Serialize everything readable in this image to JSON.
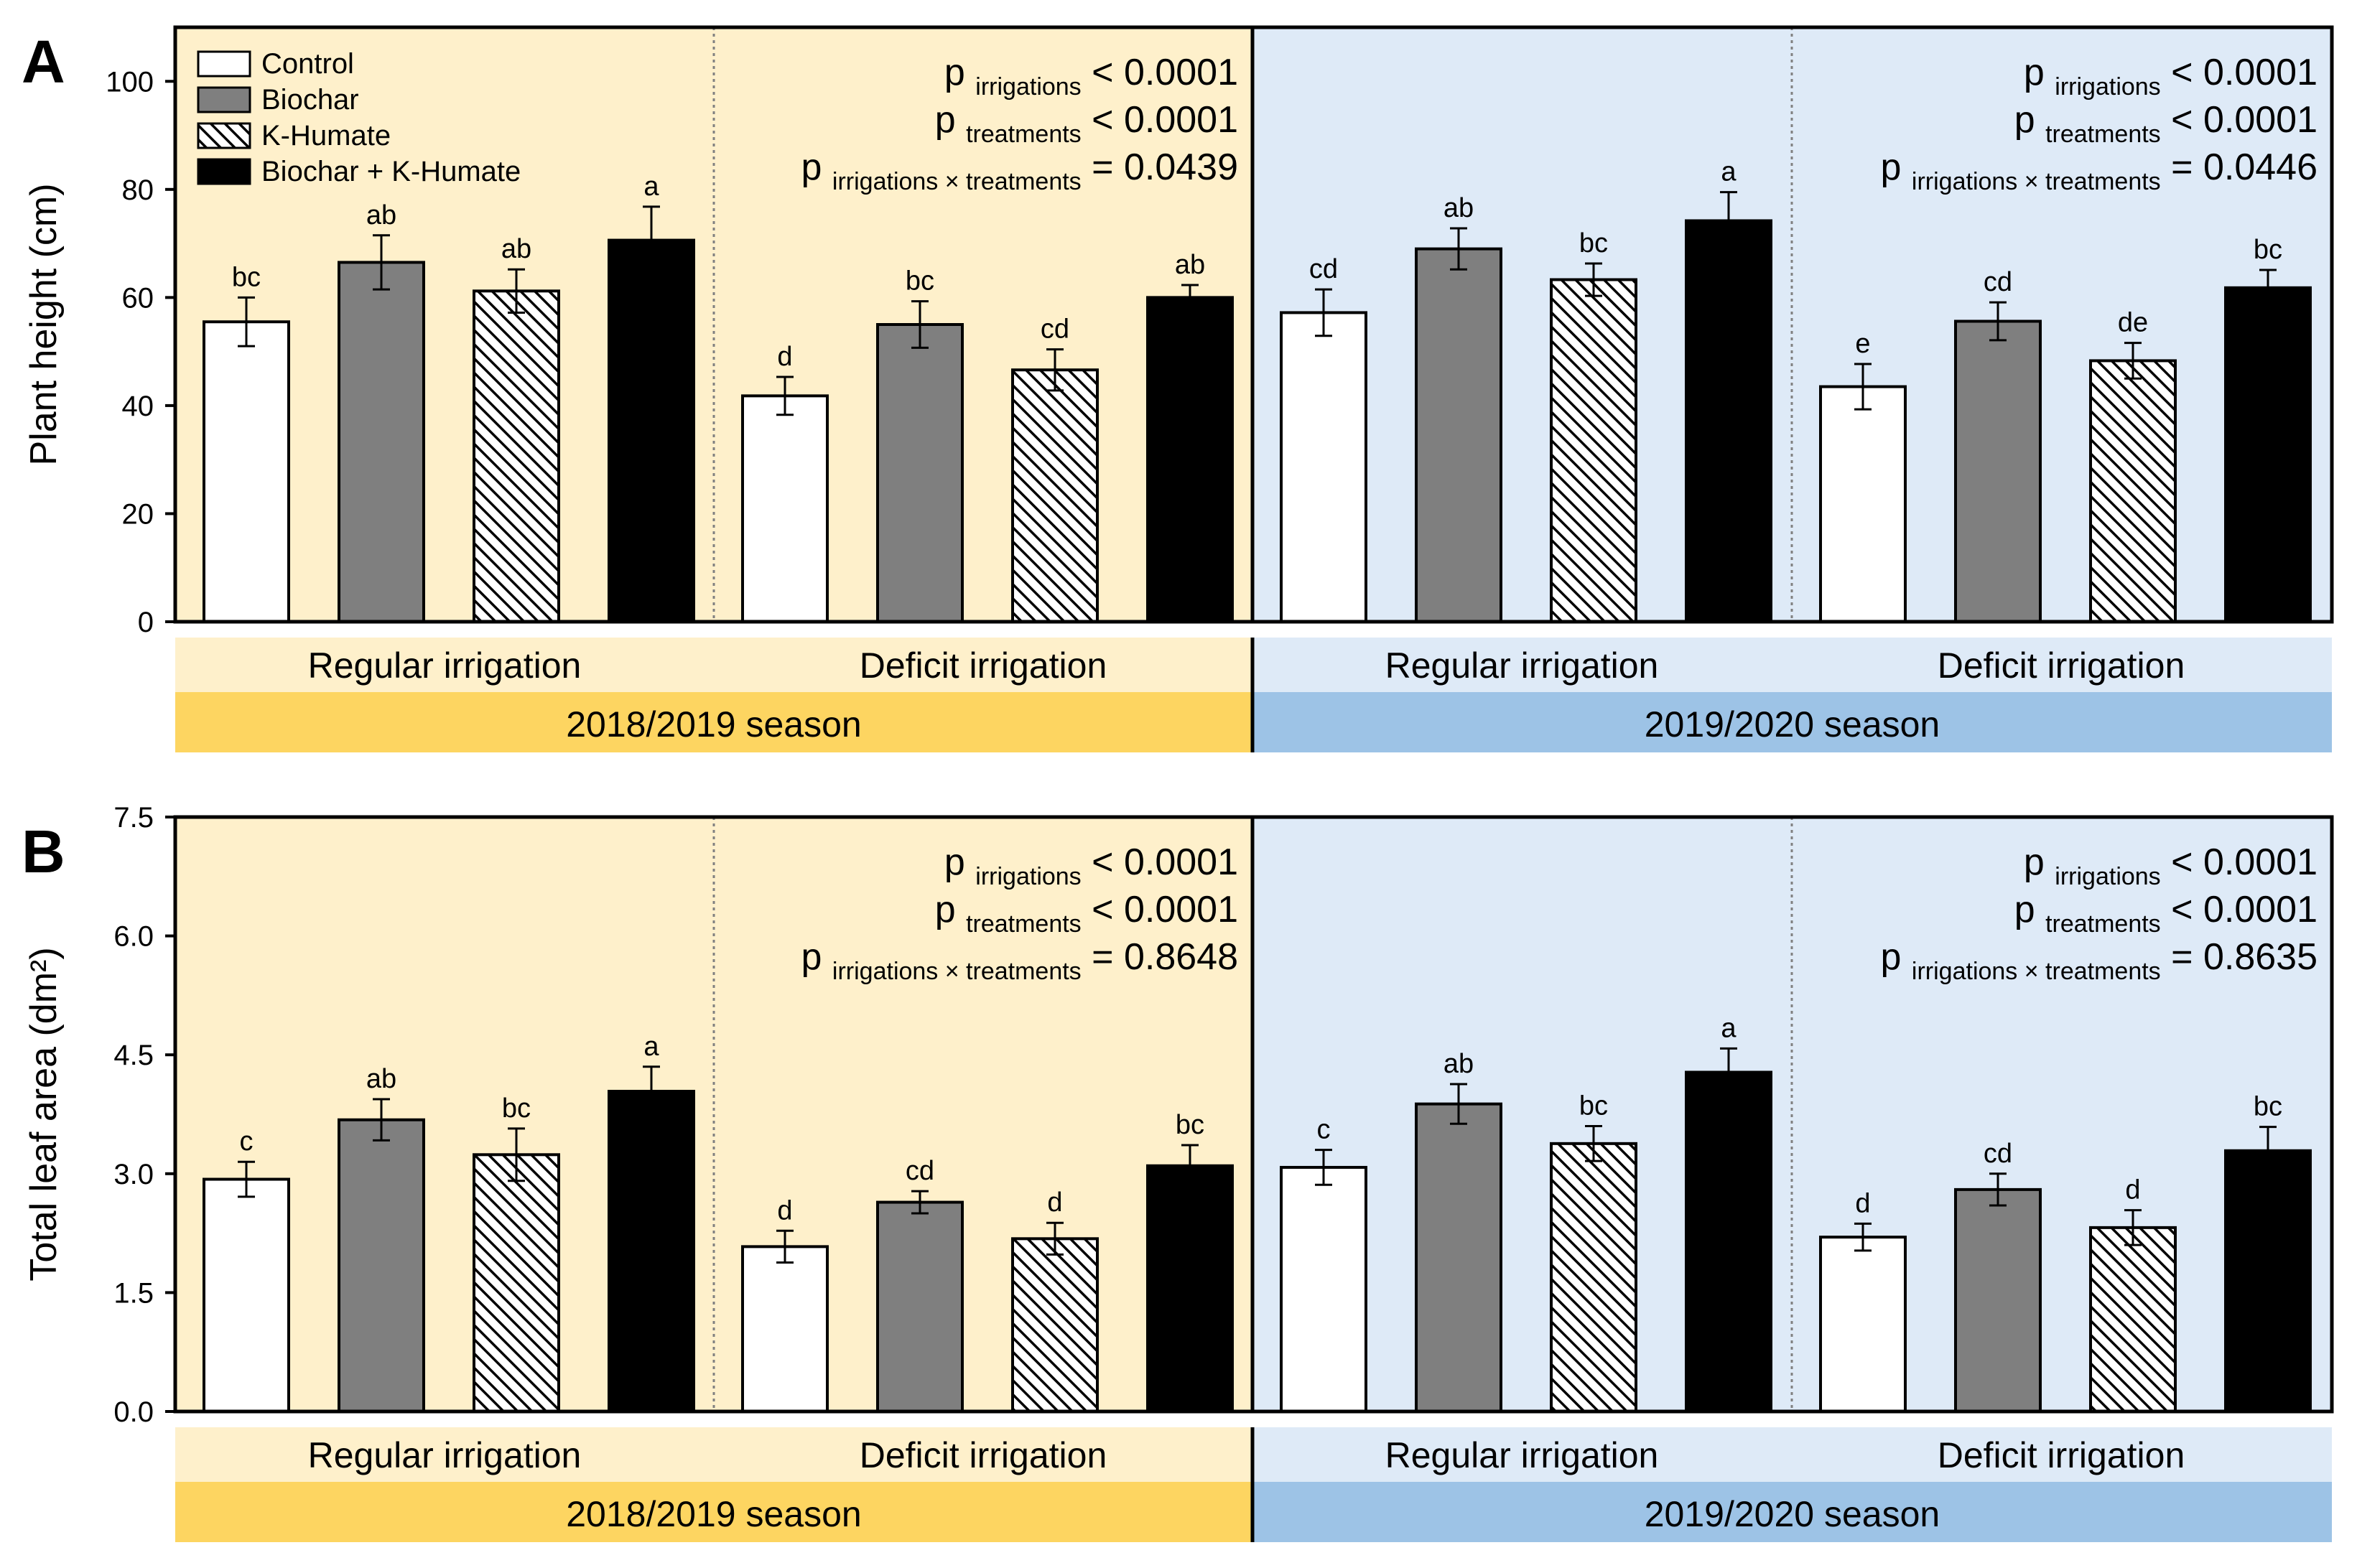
{
  "legend": [
    {
      "name": "Control",
      "style": "white"
    },
    {
      "name": "Biochar",
      "style": "gray"
    },
    {
      "name": "K-Humate",
      "style": "hatch"
    },
    {
      "name": "Biochar + K-Humate",
      "style": "black"
    }
  ],
  "colors": {
    "season1_light": "#fef0cb",
    "season1_band": "#fdd561",
    "season2_light": "#deeaf7",
    "season2_band": "#9dc3e6",
    "gray_bar": "#7f7f7f",
    "black_bar": "#000000"
  },
  "labels": {
    "season1": "2018/2019 season",
    "season2": "2019/2020 season",
    "regular": "Regular irrigation",
    "deficit": "Deficit irrigation",
    "p_sub1": "irrigations",
    "p_sub2": "treatments",
    "p_sub3": "irrigations × treatments"
  },
  "chart_data": [
    {
      "type": "bar",
      "panel": "A",
      "ylabel": "Plant height (cm)",
      "ylim": [
        0,
        110
      ],
      "yticks": [
        "0",
        "20",
        "40",
        "60",
        "80",
        "100"
      ],
      "ytick_values": [
        0,
        20,
        40,
        60,
        80,
        100
      ],
      "groups": [
        "2018/2019 Regular irrigation",
        "2018/2019 Deficit irrigation",
        "2019/2020 Regular irrigation",
        "2019/2020 Deficit irrigation"
      ],
      "series": [
        {
          "name": "Control",
          "values": [
            55.5,
            41.8,
            57.2,
            43.5
          ],
          "errors": [
            4.5,
            3.5,
            4.3,
            4.2
          ],
          "letters": [
            "bc",
            "d",
            "cd",
            "e"
          ]
        },
        {
          "name": "Biochar",
          "values": [
            66.5,
            55.0,
            69.0,
            55.6
          ],
          "errors": [
            5.0,
            4.3,
            3.8,
            3.5
          ],
          "letters": [
            "ab",
            "bc",
            "ab",
            "cd"
          ]
        },
        {
          "name": "K-Humate",
          "values": [
            61.2,
            46.6,
            63.3,
            48.3
          ],
          "errors": [
            4.0,
            3.8,
            3.0,
            3.3
          ],
          "letters": [
            "ab",
            "cd",
            "bc",
            "de"
          ]
        },
        {
          "name": "Biochar + K-Humate",
          "values": [
            70.6,
            60.0,
            74.2,
            61.8
          ],
          "errors": [
            6.2,
            2.3,
            5.3,
            3.3
          ],
          "letters": [
            "a",
            "ab",
            "a",
            "bc"
          ]
        }
      ],
      "pvalues": [
        {
          "season": "2018/2019",
          "p1": "< 0.0001",
          "p2": "< 0.0001",
          "p3": "= 0.0439"
        },
        {
          "season": "2019/2020",
          "p1": "< 0.0001",
          "p2": "< 0.0001",
          "p3": "= 0.0446"
        }
      ]
    },
    {
      "type": "bar",
      "panel": "B",
      "ylabel": "Total leaf area (dm²)",
      "ylim": [
        0,
        7.5
      ],
      "yticks": [
        "0.0",
        "1.5",
        "3.0",
        "4.5",
        "6.0",
        "7.5"
      ],
      "ytick_values": [
        0,
        1.5,
        3.0,
        4.5,
        6.0,
        7.5
      ],
      "groups": [
        "2018/2019 Regular irrigation",
        "2018/2019 Deficit irrigation",
        "2019/2020 Regular irrigation",
        "2019/2020 Deficit irrigation"
      ],
      "series": [
        {
          "name": "Control",
          "values": [
            2.93,
            2.08,
            3.08,
            2.2
          ],
          "errors": [
            0.22,
            0.2,
            0.22,
            0.17
          ],
          "letters": [
            "c",
            "d",
            "c",
            "d"
          ]
        },
        {
          "name": "Biochar",
          "values": [
            3.68,
            2.64,
            3.88,
            2.8
          ],
          "errors": [
            0.26,
            0.14,
            0.25,
            0.2
          ],
          "letters": [
            "ab",
            "cd",
            "ab",
            "cd"
          ]
        },
        {
          "name": "K-Humate",
          "values": [
            3.24,
            2.18,
            3.38,
            2.32
          ],
          "errors": [
            0.33,
            0.2,
            0.22,
            0.22
          ],
          "letters": [
            "bc",
            "d",
            "bc",
            "d"
          ]
        },
        {
          "name": "Biochar + K-Humate",
          "values": [
            4.04,
            3.1,
            4.28,
            3.29
          ],
          "errors": [
            0.31,
            0.26,
            0.3,
            0.3
          ],
          "letters": [
            "a",
            "bc",
            "a",
            "bc"
          ]
        }
      ],
      "pvalues": [
        {
          "season": "2018/2019",
          "p1": "< 0.0001",
          "p2": "< 0.0001",
          "p3": "= 0.8648"
        },
        {
          "season": "2019/2020",
          "p1": "< 0.0001",
          "p2": "< 0.0001",
          "p3": "= 0.8635"
        }
      ]
    }
  ]
}
